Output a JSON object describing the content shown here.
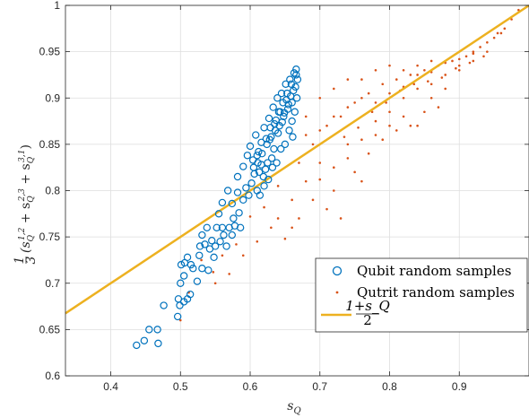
{
  "chart_data": {
    "type": "scatter",
    "xlabel": "s_Q",
    "ylabel": "⅓(s_Q^{1,2} + s_Q^{2,3} + s_Q^{3,1})",
    "xlim": [
      0.335,
      1.0
    ],
    "ylim": [
      0.6,
      1.0
    ],
    "x_ticks": [
      "0.4",
      "0.5",
      "0.6",
      "0.7",
      "0.8",
      "0.9"
    ],
    "y_ticks": [
      "0.6",
      "0.65",
      "0.7",
      "0.75",
      "0.8",
      "0.85",
      "0.9",
      "0.95",
      "1"
    ],
    "grid": true,
    "legend_position": "bottom-right",
    "colors": {
      "qubit": "#0072BD",
      "qutrit": "#D95319",
      "line": "#EDB120"
    },
    "series": [
      {
        "name": "Qubit random samples",
        "marker": "open-circle",
        "points": [
          [
            0.437,
            0.633
          ],
          [
            0.448,
            0.638
          ],
          [
            0.468,
            0.635
          ],
          [
            0.455,
            0.65
          ],
          [
            0.467,
            0.65
          ],
          [
            0.476,
            0.676
          ],
          [
            0.496,
            0.664
          ],
          [
            0.497,
            0.683
          ],
          [
            0.499,
            0.676
          ],
          [
            0.505,
            0.68
          ],
          [
            0.51,
            0.683
          ],
          [
            0.514,
            0.688
          ],
          [
            0.5,
            0.7
          ],
          [
            0.505,
            0.708
          ],
          [
            0.501,
            0.72
          ],
          [
            0.506,
            0.722
          ],
          [
            0.51,
            0.728
          ],
          [
            0.515,
            0.72
          ],
          [
            0.518,
            0.716
          ],
          [
            0.524,
            0.702
          ],
          [
            0.527,
            0.73
          ],
          [
            0.531,
            0.716
          ],
          [
            0.54,
            0.714
          ],
          [
            0.528,
            0.74
          ],
          [
            0.531,
            0.752
          ],
          [
            0.535,
            0.742
          ],
          [
            0.542,
            0.737
          ],
          [
            0.538,
            0.76
          ],
          [
            0.545,
            0.746
          ],
          [
            0.548,
            0.728
          ],
          [
            0.55,
            0.74
          ],
          [
            0.552,
            0.76
          ],
          [
            0.557,
            0.745
          ],
          [
            0.56,
            0.76
          ],
          [
            0.562,
            0.752
          ],
          [
            0.555,
            0.775
          ],
          [
            0.566,
            0.74
          ],
          [
            0.57,
            0.76
          ],
          [
            0.574,
            0.752
          ],
          [
            0.576,
            0.77
          ],
          [
            0.578,
            0.762
          ],
          [
            0.584,
            0.776
          ],
          [
            0.586,
            0.76
          ],
          [
            0.56,
            0.787
          ],
          [
            0.568,
            0.8
          ],
          [
            0.574,
            0.786
          ],
          [
            0.582,
            0.798
          ],
          [
            0.59,
            0.79
          ],
          [
            0.594,
            0.803
          ],
          [
            0.598,
            0.795
          ],
          [
            0.602,
            0.808
          ],
          [
            0.606,
            0.818
          ],
          [
            0.61,
            0.8
          ],
          [
            0.614,
            0.795
          ],
          [
            0.582,
            0.815
          ],
          [
            0.59,
            0.826
          ],
          [
            0.596,
            0.838
          ],
          [
            0.6,
            0.848
          ],
          [
            0.604,
            0.833
          ],
          [
            0.608,
            0.86
          ],
          [
            0.612,
            0.842
          ],
          [
            0.616,
            0.852
          ],
          [
            0.62,
            0.868
          ],
          [
            0.624,
            0.85
          ],
          [
            0.627,
            0.878
          ],
          [
            0.63,
            0.858
          ],
          [
            0.633,
            0.89
          ],
          [
            0.636,
            0.865
          ],
          [
            0.639,
            0.9
          ],
          [
            0.642,
            0.87
          ],
          [
            0.645,
            0.905
          ],
          [
            0.648,
            0.88
          ],
          [
            0.651,
            0.915
          ],
          [
            0.654,
            0.888
          ],
          [
            0.657,
            0.92
          ],
          [
            0.66,
            0.895
          ],
          [
            0.663,
            0.927
          ],
          [
            0.666,
            0.931
          ],
          [
            0.665,
            0.912
          ],
          [
            0.662,
            0.908
          ],
          [
            0.658,
            0.902
          ],
          [
            0.655,
            0.893
          ],
          [
            0.652,
            0.898
          ],
          [
            0.649,
            0.884
          ],
          [
            0.646,
            0.874
          ],
          [
            0.643,
            0.885
          ],
          [
            0.64,
            0.862
          ],
          [
            0.637,
            0.876
          ],
          [
            0.634,
            0.845
          ],
          [
            0.631,
            0.835
          ],
          [
            0.628,
            0.855
          ],
          [
            0.625,
            0.83
          ],
          [
            0.622,
            0.823
          ],
          [
            0.619,
            0.815
          ],
          [
            0.616,
            0.828
          ],
          [
            0.613,
            0.82
          ],
          [
            0.61,
            0.838
          ],
          [
            0.605,
            0.825
          ],
          [
            0.66,
            0.875
          ],
          [
            0.664,
            0.885
          ],
          [
            0.667,
            0.9
          ],
          [
            0.661,
            0.858
          ],
          [
            0.656,
            0.865
          ],
          [
            0.65,
            0.85
          ],
          [
            0.644,
            0.845
          ],
          [
            0.638,
            0.83
          ],
          [
            0.668,
            0.92
          ],
          [
            0.666,
            0.925
          ],
          [
            0.659,
            0.915
          ],
          [
            0.653,
            0.905
          ],
          [
            0.647,
            0.895
          ],
          [
            0.641,
            0.885
          ],
          [
            0.635,
            0.872
          ],
          [
            0.629,
            0.868
          ],
          [
            0.623,
            0.856
          ],
          [
            0.617,
            0.84
          ],
          [
            0.611,
            0.83
          ],
          [
            0.62,
            0.805
          ],
          [
            0.626,
            0.812
          ],
          [
            0.632,
            0.825
          ]
        ]
      },
      {
        "name": "Qutrit random samples",
        "marker": "dot",
        "points": [
          [
            0.5,
            0.66
          ],
          [
            0.512,
            0.69
          ],
          [
            0.53,
            0.725
          ],
          [
            0.547,
            0.712
          ],
          [
            0.56,
            0.73
          ],
          [
            0.58,
            0.742
          ],
          [
            0.6,
            0.772
          ],
          [
            0.62,
            0.782
          ],
          [
            0.64,
            0.805
          ],
          [
            0.66,
            0.79
          ],
          [
            0.68,
            0.81
          ],
          [
            0.7,
            0.83
          ],
          [
            0.72,
            0.8
          ],
          [
            0.74,
            0.85
          ],
          [
            0.76,
            0.81
          ],
          [
            0.78,
            0.86
          ],
          [
            0.8,
            0.87
          ],
          [
            0.82,
            0.88
          ],
          [
            0.84,
            0.87
          ],
          [
            0.86,
            0.9
          ],
          [
            0.88,
            0.91
          ],
          [
            0.9,
            0.93
          ],
          [
            0.92,
            0.94
          ],
          [
            0.94,
            0.95
          ],
          [
            0.96,
            0.97
          ],
          [
            0.67,
            0.83
          ],
          [
            0.69,
            0.85
          ],
          [
            0.71,
            0.87
          ],
          [
            0.73,
            0.88
          ],
          [
            0.75,
            0.895
          ],
          [
            0.77,
            0.905
          ],
          [
            0.79,
            0.915
          ],
          [
            0.81,
            0.92
          ],
          [
            0.83,
            0.925
          ],
          [
            0.85,
            0.93
          ],
          [
            0.87,
            0.935
          ],
          [
            0.89,
            0.94
          ],
          [
            0.91,
            0.945
          ],
          [
            0.93,
            0.955
          ],
          [
            0.95,
            0.965
          ],
          [
            0.68,
            0.88
          ],
          [
            0.7,
            0.9
          ],
          [
            0.72,
            0.91
          ],
          [
            0.74,
            0.92
          ],
          [
            0.76,
            0.92
          ],
          [
            0.78,
            0.93
          ],
          [
            0.8,
            0.935
          ],
          [
            0.82,
            0.93
          ],
          [
            0.84,
            0.935
          ],
          [
            0.86,
            0.94
          ],
          [
            0.69,
            0.79
          ],
          [
            0.71,
            0.78
          ],
          [
            0.73,
            0.77
          ],
          [
            0.75,
            0.82
          ],
          [
            0.77,
            0.84
          ],
          [
            0.79,
            0.855
          ],
          [
            0.81,
            0.865
          ],
          [
            0.83,
            0.87
          ],
          [
            0.85,
            0.885
          ],
          [
            0.87,
            0.89
          ],
          [
            0.64,
            0.77
          ],
          [
            0.66,
            0.76
          ],
          [
            0.65,
            0.748
          ],
          [
            0.63,
            0.76
          ],
          [
            0.61,
            0.745
          ],
          [
            0.59,
            0.73
          ],
          [
            0.57,
            0.71
          ],
          [
            0.55,
            0.7
          ],
          [
            0.67,
            0.77
          ],
          [
            0.7,
            0.812
          ],
          [
            0.72,
            0.825
          ],
          [
            0.74,
            0.835
          ],
          [
            0.76,
            0.855
          ],
          [
            0.78,
            0.875
          ],
          [
            0.8,
            0.885
          ],
          [
            0.82,
            0.9
          ],
          [
            0.84,
            0.91
          ],
          [
            0.86,
            0.915
          ],
          [
            0.88,
            0.925
          ],
          [
            0.9,
            0.935
          ],
          [
            0.92,
            0.95
          ],
          [
            0.94,
            0.96
          ],
          [
            0.955,
            0.97
          ],
          [
            0.965,
            0.975
          ],
          [
            0.975,
            0.985
          ],
          [
            0.985,
            0.995
          ],
          [
            0.68,
            0.86
          ],
          [
            0.7,
            0.865
          ],
          [
            0.72,
            0.88
          ],
          [
            0.74,
            0.89
          ],
          [
            0.76,
            0.9
          ],
          [
            0.78,
            0.895
          ],
          [
            0.8,
            0.905
          ],
          [
            0.82,
            0.912
          ],
          [
            0.84,
            0.925
          ],
          [
            0.86,
            0.928
          ],
          [
            0.88,
            0.938
          ],
          [
            0.9,
            0.942
          ],
          [
            0.92,
            0.948
          ],
          [
            0.735,
            0.858
          ],
          [
            0.755,
            0.868
          ],
          [
            0.775,
            0.885
          ],
          [
            0.795,
            0.895
          ],
          [
            0.815,
            0.908
          ],
          [
            0.835,
            0.915
          ],
          [
            0.855,
            0.918
          ],
          [
            0.875,
            0.922
          ],
          [
            0.895,
            0.932
          ],
          [
            0.915,
            0.938
          ],
          [
            0.935,
            0.945
          ]
        ]
      },
      {
        "name": "(1+s_Q)/2",
        "marker": "line",
        "points": [
          [
            0.335,
            0.6675
          ],
          [
            1.0,
            1.0
          ]
        ]
      }
    ]
  },
  "legend": {
    "qubit_label": "Qubit random samples",
    "qutrit_label": "Qutrit random samples",
    "line_numerator": "1+s_Q",
    "line_denominator": "2"
  }
}
